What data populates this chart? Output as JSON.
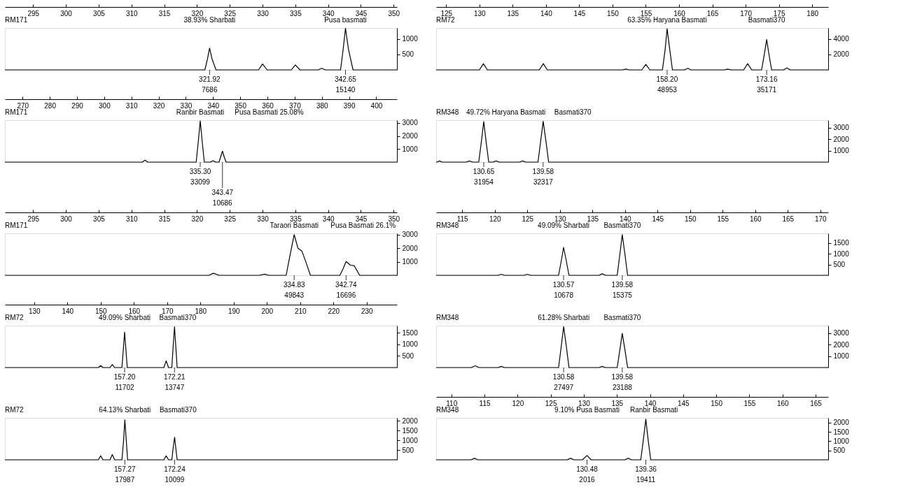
{
  "chart_data": [
    {
      "type": "line",
      "title": "RM171",
      "xlim": [
        290.7,
        350.5
      ],
      "xticks": [
        295,
        300,
        305,
        310,
        315,
        320,
        325,
        330,
        335,
        340,
        345,
        350
      ],
      "ylim": [
        0,
        1350
      ],
      "yticks": [
        500,
        1000
      ],
      "grid": false,
      "series": [
        {
          "color": "#000000",
          "x": [
            290.7,
            321.2,
            321.6,
            321.92,
            322.3,
            322.9,
            329.4,
            330,
            330.7,
            334.4,
            335,
            335.7,
            338.5,
            339,
            339.6,
            341.9,
            342.3,
            342.65,
            343.1,
            343.8,
            350.5
          ],
          "values": [
            0,
            0,
            350,
            700,
            350,
            0,
            0,
            190,
            0,
            0,
            160,
            0,
            0,
            50,
            0,
            0,
            670,
            1340,
            670,
            0,
            0
          ]
        }
      ],
      "annotations": [
        "38.93% Sharbati",
        "Pusa basmati",
        "321.92",
        "7686",
        "342.65",
        "15140"
      ]
    },
    {
      "type": "line",
      "title": "RM72",
      "xlim": [
        123.5,
        182.4
      ],
      "xticks": [
        125,
        130,
        135,
        140,
        145,
        150,
        155,
        160,
        165,
        170,
        175,
        180
      ],
      "ylim": [
        0,
        5400
      ],
      "yticks": [
        2000,
        4000
      ],
      "grid": false,
      "series": [
        {
          "color": "#000000",
          "x": [
            123.5,
            130,
            130.6,
            131.2,
            139,
            139.6,
            140.2,
            151.5,
            152,
            152.5,
            154.4,
            155,
            155.6,
            157.5,
            157.9,
            158.2,
            158.6,
            159,
            160.8,
            161.3,
            161.8,
            166.8,
            167.3,
            167.8,
            169.7,
            170.3,
            170.9,
            172.4,
            172.8,
            173.16,
            173.5,
            173.9,
            175.7,
            176.2,
            176.7,
            182.4
          ],
          "values": [
            0,
            0,
            800,
            0,
            0,
            800,
            0,
            0,
            100,
            0,
            0,
            700,
            0,
            0,
            2600,
            5300,
            2600,
            0,
            0,
            200,
            0,
            0,
            100,
            0,
            0,
            800,
            0,
            0,
            2000,
            3900,
            2000,
            0,
            0,
            250,
            0,
            0
          ]
        }
      ],
      "annotations": [
        "63.35% Haryana Basmati",
        "Basmati370",
        "158.20",
        "48953",
        "173.16",
        "35171"
      ]
    },
    {
      "type": "line",
      "title": "RM171",
      "xlim": [
        263.5,
        407.6
      ],
      "xticks": [
        270,
        280,
        290,
        300,
        310,
        320,
        330,
        340,
        350,
        360,
        370,
        380,
        390,
        400
      ],
      "ylim": [
        0,
        3200
      ],
      "yticks": [
        1000,
        2000,
        3000
      ],
      "grid": false,
      "series": [
        {
          "color": "#000000",
          "x": [
            263.5,
            314,
            315,
            316,
            333.8,
            334.6,
            335.3,
            336,
            336.8,
            339,
            340,
            341,
            342.2,
            342.8,
            343.47,
            344.1,
            344.8,
            407.6
          ],
          "values": [
            0,
            0,
            150,
            0,
            0,
            1600,
            3140,
            1600,
            0,
            0,
            100,
            0,
            0,
            400,
            840,
            400,
            0,
            0
          ]
        }
      ],
      "annotations": [
        "Ranbir Basmati",
        "Pusa Basmati 25.08%",
        "335.30",
        "33099",
        "343.47",
        "10686"
      ]
    },
    {
      "type": "line",
      "title": "RM348",
      "xlim": [
        123.5,
        182.4
      ],
      "tick_labels": "y",
      "ylim": [
        0,
        3650
      ],
      "yticks": [
        1000,
        2000,
        3000
      ],
      "grid": false,
      "series": [
        {
          "color": "#000000",
          "x": [
            123.5,
            123.6,
            124,
            124.4,
            128,
            128.5,
            129,
            129.9,
            130.3,
            130.65,
            131,
            131.4,
            132,
            132.5,
            133,
            136,
            136.5,
            137,
            138.8,
            139.2,
            139.58,
            140,
            140.4,
            182.4
          ],
          "values": [
            0,
            0,
            100,
            0,
            0,
            100,
            0,
            0,
            1800,
            3530,
            1800,
            0,
            0,
            100,
            0,
            0,
            100,
            0,
            0,
            1800,
            3550,
            1800,
            0,
            0
          ]
        }
      ],
      "annotations": [
        "49.72% Haryana Basmati",
        "Basmati370",
        "130.65",
        "31954",
        "139.58",
        "32317"
      ]
    },
    {
      "type": "line",
      "title": "RM171",
      "xlim": [
        290.7,
        350.5
      ],
      "xticks": [
        295,
        300,
        305,
        310,
        315,
        320,
        325,
        330,
        335,
        340,
        345,
        350
      ],
      "ylim": [
        0,
        3100
      ],
      "yticks": [
        1000,
        2000,
        3000
      ],
      "grid": false,
      "series": [
        {
          "color": "#000000",
          "x": [
            290.7,
            321.8,
            322.5,
            323.4,
            329.5,
            330.3,
            331,
            333.6,
            334.2,
            334.83,
            335.4,
            336,
            336.6,
            337.3,
            341.8,
            342.3,
            342.74,
            343.4,
            344,
            344.8,
            350.5
          ],
          "values": [
            0,
            0,
            150,
            0,
            0,
            80,
            0,
            0,
            1500,
            3010,
            2000,
            1790,
            1000,
            0,
            0,
            500,
            1020,
            750,
            700,
            0,
            0
          ]
        }
      ],
      "annotations": [
        "Taraori Basmati",
        "Pusa Basmati 26.1%",
        "334.83",
        "49843",
        "342.74",
        "16696"
      ]
    },
    {
      "type": "line",
      "title": "RM348",
      "xlim": [
        111,
        171.2
      ],
      "xticks": [
        115,
        120,
        125,
        130,
        135,
        140,
        145,
        150,
        155,
        160,
        165,
        170
      ],
      "ylim": [
        0,
        1950
      ],
      "yticks": [
        500,
        1000,
        1500
      ],
      "grid": false,
      "series": [
        {
          "color": "#000000",
          "x": [
            111,
            120.5,
            121,
            121.5,
            124.5,
            125,
            125.5,
            129.8,
            130.2,
            130.57,
            131,
            131.4,
            136,
            136.5,
            137,
            138.8,
            139.2,
            139.58,
            140,
            140.4,
            171.2
          ],
          "values": [
            0,
            0,
            50,
            0,
            0,
            50,
            0,
            0,
            650,
            1300,
            650,
            0,
            0,
            70,
            0,
            0,
            950,
            1890,
            950,
            0,
            0
          ]
        }
      ],
      "annotations": [
        "49.09% Sharbati",
        "Basmati370",
        "130.57",
        "10678",
        "139.58",
        "15375"
      ]
    },
    {
      "type": "line",
      "title": "RM72",
      "xlim": [
        121.2,
        239.1
      ],
      "xticks": [
        130,
        140,
        150,
        160,
        170,
        180,
        190,
        200,
        210,
        220,
        230
      ],
      "ylim": [
        0,
        1800
      ],
      "yticks": [
        500,
        1000,
        1500
      ],
      "grid": false,
      "series": [
        {
          "color": "#000000",
          "x": [
            121.2,
            149.3,
            150,
            150.7,
            152.8,
            153.5,
            154.2,
            156.4,
            156.8,
            157.2,
            157.6,
            158,
            169,
            169.7,
            170.4,
            171.4,
            171.8,
            172.21,
            172.6,
            173,
            239.1
          ],
          "values": [
            0,
            0,
            80,
            0,
            0,
            130,
            0,
            0,
            750,
            1520,
            750,
            0,
            0,
            290,
            0,
            0,
            900,
            1750,
            900,
            0,
            0
          ]
        }
      ],
      "annotations": [
        "49.09% Sharbati",
        "Basmati370",
        "157.20",
        "11702",
        "172.21",
        "13747"
      ]
    },
    {
      "type": "line",
      "title": "RM348",
      "xlim": [
        111,
        171.2
      ],
      "tick_labels": "y",
      "ylim": [
        0,
        3650
      ],
      "yticks": [
        1000,
        2000,
        3000
      ],
      "grid": false,
      "series": [
        {
          "color": "#000000",
          "x": [
            111,
            116.4,
            117,
            117.6,
            120.5,
            121,
            121.5,
            129.8,
            130.2,
            130.58,
            131,
            131.4,
            136,
            136.5,
            137,
            138.8,
            139.2,
            139.58,
            140,
            140.4,
            171.2
          ],
          "values": [
            0,
            0,
            150,
            0,
            0,
            100,
            0,
            0,
            1800,
            3550,
            1800,
            0,
            0,
            100,
            0,
            0,
            1500,
            2970,
            1500,
            0,
            0
          ]
        }
      ],
      "annotations": [
        "61.28% Sharbati",
        "Basmati370",
        "130.58",
        "27497",
        "139.58",
        "23188"
      ]
    },
    {
      "type": "line",
      "title": "RM72",
      "xlim": [
        121.2,
        239.1
      ],
      "tick_labels": "y",
      "ylim": [
        0,
        2150
      ],
      "yticks": [
        500,
        1000,
        1500,
        2000
      ],
      "grid": false,
      "series": [
        {
          "color": "#000000",
          "x": [
            121.2,
            149.3,
            150,
            150.7,
            152.8,
            153.5,
            154.2,
            156.4,
            156.9,
            157.27,
            157.7,
            158.1,
            169,
            169.7,
            170.4,
            171.4,
            171.8,
            172.24,
            172.6,
            173,
            239.1
          ],
          "values": [
            0,
            0,
            200,
            0,
            0,
            270,
            0,
            0,
            1000,
            2050,
            1000,
            0,
            0,
            200,
            0,
            0,
            600,
            1160,
            600,
            0,
            0
          ]
        }
      ],
      "annotations": [
        "64.13% Sharbati",
        "Basmati370",
        "157.27",
        "17987",
        "172.24",
        "10099"
      ]
    },
    {
      "type": "line",
      "title": "RM348",
      "xlim": [
        107.7,
        166.9
      ],
      "xticks": [
        110,
        115,
        120,
        125,
        130,
        135,
        140,
        145,
        150,
        155,
        160,
        165
      ],
      "ylim": [
        0,
        2250
      ],
      "yticks": [
        500,
        1000,
        1500,
        2000
      ],
      "grid": false,
      "series": [
        {
          "color": "#000000",
          "x": [
            107.7,
            113,
            113.5,
            114,
            127.5,
            128,
            128.5,
            129.8,
            130.48,
            131.1,
            136.2,
            136.7,
            137.2,
            138.6,
            139,
            139.36,
            139.7,
            140.1,
            166.9
          ],
          "values": [
            0,
            0,
            80,
            0,
            0,
            80,
            0,
            0,
            230,
            0,
            0,
            80,
            0,
            0,
            1100,
            2180,
            1100,
            0,
            0
          ]
        }
      ],
      "annotations": [
        "9.10% Pusa Basmati",
        "Ranbir Basmati",
        "130.48",
        "2016",
        "139.36",
        "19411"
      ]
    }
  ]
}
